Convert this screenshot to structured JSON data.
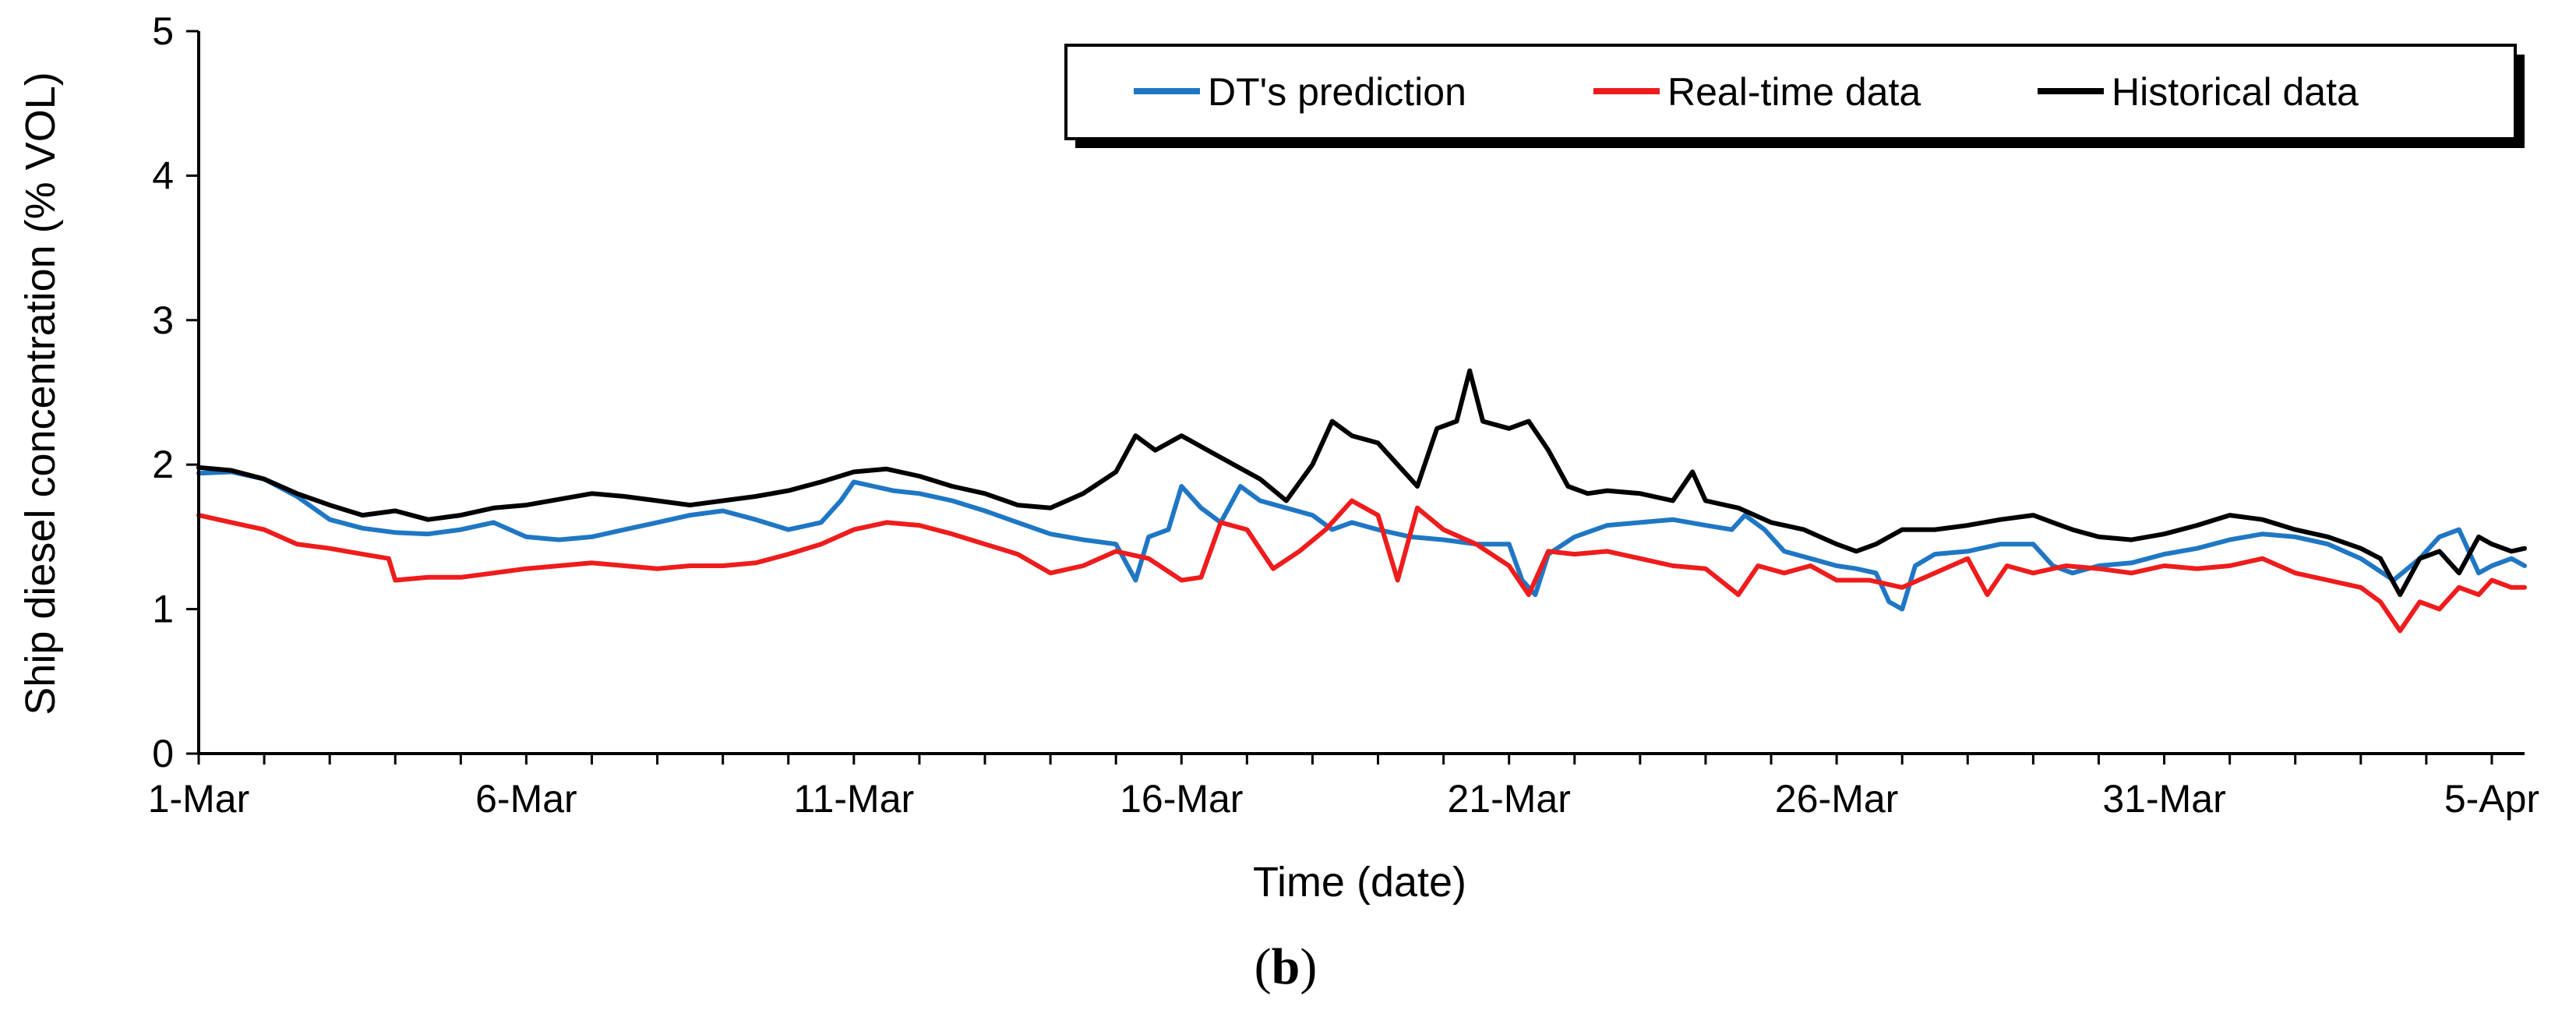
{
  "chart_data": {
    "type": "line",
    "title": "",
    "xlabel": "Time (date)",
    "ylabel": "Ship diesel concentration (% VOL)",
    "caption_prefix": "(",
    "caption_letter": "b",
    "caption_suffix": ")",
    "xlim": [
      0,
      35.5
    ],
    "ylim": [
      0,
      5
    ],
    "yticks": [
      0,
      1,
      2,
      3,
      4,
      5
    ],
    "xticks": [
      {
        "day": 0,
        "label": "1-Mar"
      },
      {
        "day": 5,
        "label": "6-Mar"
      },
      {
        "day": 10,
        "label": "11-Mar"
      },
      {
        "day": 15,
        "label": "16-Mar"
      },
      {
        "day": 20,
        "label": "21-Mar"
      },
      {
        "day": 25,
        "label": "26-Mar"
      },
      {
        "day": 30,
        "label": "31-Mar"
      },
      {
        "day": 35,
        "label": "5-Apr"
      }
    ],
    "grid": false,
    "legend_position": "top-right",
    "series": [
      {
        "name": "DT's prediction",
        "color": "#1f77c4",
        "points": [
          [
            0,
            1.94
          ],
          [
            0.5,
            1.95
          ],
          [
            1,
            1.9
          ],
          [
            1.5,
            1.78
          ],
          [
            2,
            1.62
          ],
          [
            2.5,
            1.56
          ],
          [
            3,
            1.53
          ],
          [
            3.5,
            1.52
          ],
          [
            4,
            1.55
          ],
          [
            4.5,
            1.6
          ],
          [
            5,
            1.5
          ],
          [
            5.5,
            1.48
          ],
          [
            6,
            1.5
          ],
          [
            6.5,
            1.55
          ],
          [
            7,
            1.6
          ],
          [
            7.5,
            1.65
          ],
          [
            8,
            1.68
          ],
          [
            8.5,
            1.62
          ],
          [
            9,
            1.55
          ],
          [
            9.5,
            1.6
          ],
          [
            9.8,
            1.75
          ],
          [
            10,
            1.88
          ],
          [
            10.3,
            1.85
          ],
          [
            10.6,
            1.82
          ],
          [
            11,
            1.8
          ],
          [
            11.5,
            1.75
          ],
          [
            12,
            1.68
          ],
          [
            12.5,
            1.6
          ],
          [
            13,
            1.52
          ],
          [
            13.5,
            1.48
          ],
          [
            14,
            1.45
          ],
          [
            14.3,
            1.2
          ],
          [
            14.5,
            1.5
          ],
          [
            14.8,
            1.55
          ],
          [
            15,
            1.85
          ],
          [
            15.3,
            1.7
          ],
          [
            15.6,
            1.6
          ],
          [
            15.9,
            1.85
          ],
          [
            16.2,
            1.75
          ],
          [
            16.6,
            1.7
          ],
          [
            17,
            1.65
          ],
          [
            17.3,
            1.55
          ],
          [
            17.6,
            1.6
          ],
          [
            18,
            1.55
          ],
          [
            18.5,
            1.5
          ],
          [
            19,
            1.48
          ],
          [
            19.5,
            1.45
          ],
          [
            20,
            1.45
          ],
          [
            20.2,
            1.2
          ],
          [
            20.4,
            1.1
          ],
          [
            20.6,
            1.38
          ],
          [
            21,
            1.5
          ],
          [
            21.5,
            1.58
          ],
          [
            22,
            1.6
          ],
          [
            22.5,
            1.62
          ],
          [
            23,
            1.58
          ],
          [
            23.4,
            1.55
          ],
          [
            23.6,
            1.65
          ],
          [
            23.9,
            1.55
          ],
          [
            24.2,
            1.4
          ],
          [
            24.6,
            1.35
          ],
          [
            25,
            1.3
          ],
          [
            25.3,
            1.28
          ],
          [
            25.6,
            1.25
          ],
          [
            25.8,
            1.05
          ],
          [
            26,
            1.0
          ],
          [
            26.2,
            1.3
          ],
          [
            26.5,
            1.38
          ],
          [
            27,
            1.4
          ],
          [
            27.5,
            1.45
          ],
          [
            28,
            1.45
          ],
          [
            28.3,
            1.3
          ],
          [
            28.6,
            1.25
          ],
          [
            29,
            1.3
          ],
          [
            29.5,
            1.32
          ],
          [
            30,
            1.38
          ],
          [
            30.5,
            1.42
          ],
          [
            31,
            1.48
          ],
          [
            31.5,
            1.52
          ],
          [
            32,
            1.5
          ],
          [
            32.5,
            1.45
          ],
          [
            33,
            1.35
          ],
          [
            33.5,
            1.2
          ],
          [
            33.9,
            1.35
          ],
          [
            34.2,
            1.5
          ],
          [
            34.5,
            1.55
          ],
          [
            34.8,
            1.25
          ],
          [
            35,
            1.3
          ],
          [
            35.3,
            1.35
          ],
          [
            35.5,
            1.3
          ]
        ]
      },
      {
        "name": "Real-time data",
        "color": "#ee1c1c",
        "points": [
          [
            0,
            1.65
          ],
          [
            0.5,
            1.6
          ],
          [
            1,
            1.55
          ],
          [
            1.5,
            1.45
          ],
          [
            2,
            1.42
          ],
          [
            2.5,
            1.38
          ],
          [
            2.9,
            1.35
          ],
          [
            3,
            1.2
          ],
          [
            3.5,
            1.22
          ],
          [
            4,
            1.22
          ],
          [
            4.5,
            1.25
          ],
          [
            5,
            1.28
          ],
          [
            5.5,
            1.3
          ],
          [
            6,
            1.32
          ],
          [
            6.5,
            1.3
          ],
          [
            7,
            1.28
          ],
          [
            7.5,
            1.3
          ],
          [
            8,
            1.3
          ],
          [
            8.5,
            1.32
          ],
          [
            9,
            1.38
          ],
          [
            9.5,
            1.45
          ],
          [
            10,
            1.55
          ],
          [
            10.5,
            1.6
          ],
          [
            11,
            1.58
          ],
          [
            11.5,
            1.52
          ],
          [
            12,
            1.45
          ],
          [
            12.5,
            1.38
          ],
          [
            13,
            1.25
          ],
          [
            13.5,
            1.3
          ],
          [
            14,
            1.4
          ],
          [
            14.5,
            1.35
          ],
          [
            15,
            1.2
          ],
          [
            15.3,
            1.22
          ],
          [
            15.6,
            1.6
          ],
          [
            16,
            1.55
          ],
          [
            16.4,
            1.28
          ],
          [
            16.8,
            1.4
          ],
          [
            17.2,
            1.55
          ],
          [
            17.6,
            1.75
          ],
          [
            18,
            1.65
          ],
          [
            18.3,
            1.2
          ],
          [
            18.6,
            1.7
          ],
          [
            19,
            1.55
          ],
          [
            19.5,
            1.45
          ],
          [
            20,
            1.3
          ],
          [
            20.3,
            1.1
          ],
          [
            20.6,
            1.4
          ],
          [
            21,
            1.38
          ],
          [
            21.5,
            1.4
          ],
          [
            22,
            1.35
          ],
          [
            22.5,
            1.3
          ],
          [
            23,
            1.28
          ],
          [
            23.5,
            1.1
          ],
          [
            23.8,
            1.3
          ],
          [
            24.2,
            1.25
          ],
          [
            24.6,
            1.3
          ],
          [
            25,
            1.2
          ],
          [
            25.5,
            1.2
          ],
          [
            26,
            1.15
          ],
          [
            26.5,
            1.25
          ],
          [
            27,
            1.35
          ],
          [
            27.3,
            1.1
          ],
          [
            27.6,
            1.3
          ],
          [
            28,
            1.25
          ],
          [
            28.5,
            1.3
          ],
          [
            29,
            1.28
          ],
          [
            29.5,
            1.25
          ],
          [
            30,
            1.3
          ],
          [
            30.5,
            1.28
          ],
          [
            31,
            1.3
          ],
          [
            31.5,
            1.35
          ],
          [
            32,
            1.25
          ],
          [
            32.5,
            1.2
          ],
          [
            33,
            1.15
          ],
          [
            33.3,
            1.05
          ],
          [
            33.6,
            0.85
          ],
          [
            33.9,
            1.05
          ],
          [
            34.2,
            1.0
          ],
          [
            34.5,
            1.15
          ],
          [
            34.8,
            1.1
          ],
          [
            35,
            1.2
          ],
          [
            35.3,
            1.15
          ],
          [
            35.5,
            1.15
          ]
        ]
      },
      {
        "name": "Historical data",
        "color": "#000000",
        "points": [
          [
            0,
            1.98
          ],
          [
            0.5,
            1.96
          ],
          [
            1,
            1.9
          ],
          [
            1.5,
            1.8
          ],
          [
            2,
            1.72
          ],
          [
            2.5,
            1.65
          ],
          [
            3,
            1.68
          ],
          [
            3.5,
            1.62
          ],
          [
            4,
            1.65
          ],
          [
            4.5,
            1.7
          ],
          [
            5,
            1.72
          ],
          [
            5.5,
            1.76
          ],
          [
            6,
            1.8
          ],
          [
            6.5,
            1.78
          ],
          [
            7,
            1.75
          ],
          [
            7.5,
            1.72
          ],
          [
            8,
            1.75
          ],
          [
            8.5,
            1.78
          ],
          [
            9,
            1.82
          ],
          [
            9.5,
            1.88
          ],
          [
            10,
            1.95
          ],
          [
            10.5,
            1.97
          ],
          [
            11,
            1.92
          ],
          [
            11.5,
            1.85
          ],
          [
            12,
            1.8
          ],
          [
            12.5,
            1.72
          ],
          [
            13,
            1.7
          ],
          [
            13.5,
            1.8
          ],
          [
            14,
            1.95
          ],
          [
            14.3,
            2.2
          ],
          [
            14.6,
            2.1
          ],
          [
            15,
            2.2
          ],
          [
            15.4,
            2.1
          ],
          [
            15.8,
            2.0
          ],
          [
            16.2,
            1.9
          ],
          [
            16.6,
            1.75
          ],
          [
            17,
            2.0
          ],
          [
            17.3,
            2.3
          ],
          [
            17.6,
            2.2
          ],
          [
            18,
            2.15
          ],
          [
            18.3,
            2.0
          ],
          [
            18.6,
            1.85
          ],
          [
            18.9,
            2.25
          ],
          [
            19.2,
            2.3
          ],
          [
            19.4,
            2.65
          ],
          [
            19.6,
            2.3
          ],
          [
            20,
            2.25
          ],
          [
            20.3,
            2.3
          ],
          [
            20.6,
            2.1
          ],
          [
            20.9,
            1.85
          ],
          [
            21.2,
            1.8
          ],
          [
            21.5,
            1.82
          ],
          [
            22,
            1.8
          ],
          [
            22.5,
            1.75
          ],
          [
            22.8,
            1.95
          ],
          [
            23,
            1.75
          ],
          [
            23.5,
            1.7
          ],
          [
            24,
            1.6
          ],
          [
            24.5,
            1.55
          ],
          [
            25,
            1.45
          ],
          [
            25.3,
            1.4
          ],
          [
            25.6,
            1.45
          ],
          [
            26,
            1.55
          ],
          [
            26.5,
            1.55
          ],
          [
            27,
            1.58
          ],
          [
            27.5,
            1.62
          ],
          [
            28,
            1.65
          ],
          [
            28.3,
            1.6
          ],
          [
            28.6,
            1.55
          ],
          [
            29,
            1.5
          ],
          [
            29.5,
            1.48
          ],
          [
            30,
            1.52
          ],
          [
            30.5,
            1.58
          ],
          [
            31,
            1.65
          ],
          [
            31.5,
            1.62
          ],
          [
            32,
            1.55
          ],
          [
            32.5,
            1.5
          ],
          [
            33,
            1.42
          ],
          [
            33.3,
            1.35
          ],
          [
            33.6,
            1.1
          ],
          [
            33.9,
            1.35
          ],
          [
            34.2,
            1.4
          ],
          [
            34.5,
            1.25
          ],
          [
            34.8,
            1.5
          ],
          [
            35,
            1.45
          ],
          [
            35.3,
            1.4
          ],
          [
            35.5,
            1.42
          ]
        ]
      }
    ]
  }
}
